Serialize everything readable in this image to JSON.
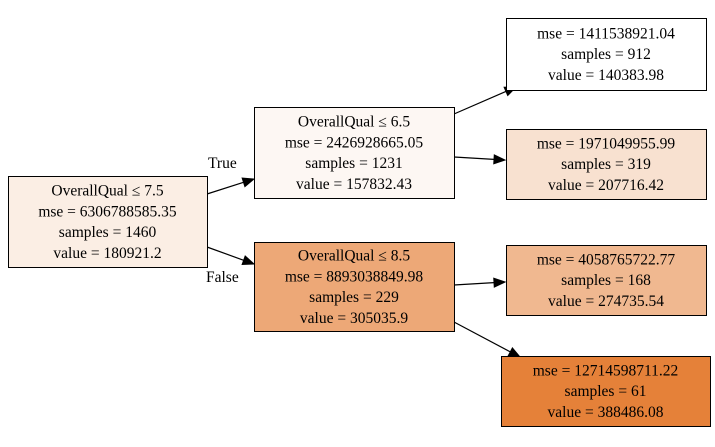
{
  "tree": {
    "nodes": [
      {
        "id": "n0",
        "lines": [
          "OverallQual ≤ 7.5",
          "mse = 6306788585.35",
          "samples = 1460",
          "value = 180921.2"
        ],
        "fill": "#fbeee4"
      },
      {
        "id": "n1",
        "lines": [
          "OverallQual ≤ 6.5",
          "mse = 2426928665.05",
          "samples = 1231",
          "value = 157832.43"
        ],
        "fill": "#fdf7f3"
      },
      {
        "id": "n2",
        "lines": [
          "mse = 1411538921.04",
          "samples = 912",
          "value = 140383.98"
        ],
        "fill": "#ffffff"
      },
      {
        "id": "n3",
        "lines": [
          "mse = 1971049955.99",
          "samples = 319",
          "value = 207716.42"
        ],
        "fill": "#f8e1d0"
      },
      {
        "id": "n4",
        "lines": [
          "OverallQual ≤ 8.5",
          "mse = 8893038849.98",
          "samples = 229",
          "value = 305035.9"
        ],
        "fill": "#eda877"
      },
      {
        "id": "n5",
        "lines": [
          "mse = 4058765722.77",
          "samples = 168",
          "value = 274735.54"
        ],
        "fill": "#f0b890"
      },
      {
        "id": "n6",
        "lines": [
          "mse = 12714598711.22",
          "samples = 61",
          "value = 388486.08"
        ],
        "fill": "#e58139"
      }
    ],
    "edges": [
      {
        "from": "n0",
        "to": "n1",
        "label": "True"
      },
      {
        "from": "n0",
        "to": "n4",
        "label": "False"
      },
      {
        "from": "n1",
        "to": "n2",
        "label": ""
      },
      {
        "from": "n1",
        "to": "n3",
        "label": ""
      },
      {
        "from": "n4",
        "to": "n5",
        "label": ""
      },
      {
        "from": "n4",
        "to": "n6",
        "label": ""
      }
    ]
  }
}
